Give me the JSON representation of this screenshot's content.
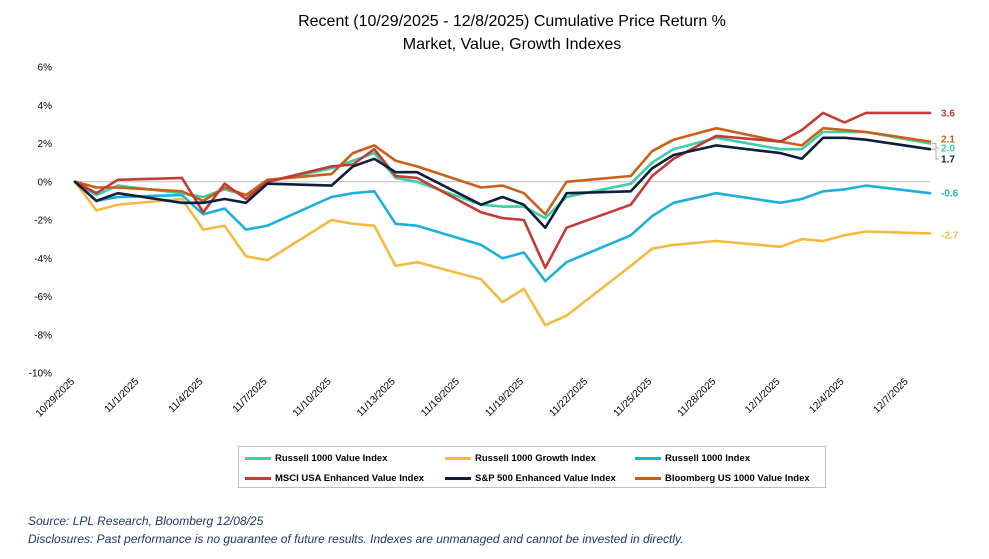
{
  "chart_data": {
    "type": "line",
    "title": "Recent (10/29/2025 - 12/8/2025) Cumulative Price Return %",
    "subtitle": "Market, Value, Growth Indexes",
    "ylim": [
      -10,
      6
    ],
    "yticks": [
      6,
      4,
      2,
      0,
      -2,
      -4,
      -6,
      -8,
      -10
    ],
    "ytick_labels": [
      "6%",
      "4%",
      "2%",
      "0%",
      "-2%",
      "-4%",
      "-6%",
      "-8%",
      "-10%"
    ],
    "x": [
      "10/29/2025",
      "10/30/2025",
      "10/31/2025",
      "11/3/2025",
      "11/4/2025",
      "11/5/2025",
      "11/6/2025",
      "11/7/2025",
      "11/10/2025",
      "11/11/2025",
      "11/12/2025",
      "11/13/2025",
      "11/14/2025",
      "11/17/2025",
      "11/18/2025",
      "11/19/2025",
      "11/20/2025",
      "11/21/2025",
      "11/24/2025",
      "11/25/2025",
      "11/26/2025",
      "11/28/2025",
      "12/1/2025",
      "12/2/2025",
      "12/3/2025",
      "12/4/2025",
      "12/5/2025",
      "12/8/2025"
    ],
    "xtick_labels": [
      "10/29/2025",
      "11/1/2025",
      "11/4/2025",
      "11/7/2025",
      "11/10/2025",
      "11/13/2025",
      "11/16/2025",
      "11/19/2025",
      "11/22/2025",
      "11/25/2025",
      "11/28/2025",
      "12/1/2025",
      "12/4/2025",
      "12/7/2025"
    ],
    "series": [
      {
        "name": "Russell 1000 Value Index",
        "color": "#3ccfa6",
        "end_label": "2.0",
        "values": [
          0.0,
          -0.7,
          -0.2,
          -0.6,
          -0.8,
          -0.4,
          -0.7,
          0.0,
          0.7,
          1.1,
          1.5,
          0.2,
          0.0,
          -1.2,
          -1.3,
          -1.3,
          -1.9,
          -0.8,
          -0.1,
          1.0,
          1.7,
          2.3,
          1.7,
          1.7,
          2.6,
          2.6,
          2.6,
          2.0
        ]
      },
      {
        "name": "Russell 1000 Growth Index",
        "color": "#f5b942",
        "end_label": "-2.7",
        "values": [
          0.0,
          -1.5,
          -1.2,
          -0.9,
          -2.5,
          -2.3,
          -3.9,
          -4.1,
          -2.0,
          -2.2,
          -2.3,
          -4.4,
          -4.2,
          -5.1,
          -6.3,
          -5.6,
          -7.5,
          -7.0,
          -4.4,
          -3.5,
          -3.3,
          -3.1,
          -3.4,
          -3.0,
          -3.1,
          -2.8,
          -2.6,
          -2.7
        ]
      },
      {
        "name": "Russell 1000 Index",
        "color": "#1cb0d8",
        "end_label": "-0.6",
        "values": [
          0.0,
          -1.0,
          -0.8,
          -0.7,
          -1.7,
          -1.4,
          -2.5,
          -2.3,
          -0.8,
          -0.6,
          -0.5,
          -2.2,
          -2.3,
          -3.3,
          -4.0,
          -3.7,
          -5.2,
          -4.2,
          -2.8,
          -1.8,
          -1.1,
          -0.6,
          -1.1,
          -0.9,
          -0.5,
          -0.4,
          -0.2,
          -0.6
        ]
      },
      {
        "name": "MSCI USA Enhanced Value Index",
        "color": "#c23b34",
        "end_label": "3.6",
        "values": [
          0.0,
          -0.6,
          0.1,
          0.2,
          -1.6,
          -0.1,
          -0.9,
          0.0,
          0.8,
          0.9,
          1.7,
          0.3,
          0.2,
          -1.6,
          -1.9,
          -2.0,
          -4.5,
          -2.4,
          -1.2,
          0.3,
          1.2,
          2.4,
          2.1,
          2.7,
          3.6,
          3.1,
          3.6,
          3.6
        ]
      },
      {
        "name": "S&P 500 Enhanced Value Index",
        "color": "#0e1f3d",
        "end_label": "1.7",
        "values": [
          0.0,
          -1.0,
          -0.6,
          -1.1,
          -1.1,
          -0.9,
          -1.1,
          -0.1,
          -0.2,
          0.8,
          1.2,
          0.5,
          0.5,
          -1.2,
          -0.8,
          -1.2,
          -2.4,
          -0.6,
          -0.5,
          0.7,
          1.4,
          1.9,
          1.5,
          1.2,
          2.3,
          2.3,
          2.2,
          1.7
        ]
      },
      {
        "name": "Bloomberg US 1000 Value Index",
        "color": "#c8601a",
        "end_label": "2.1",
        "values": [
          0.0,
          -0.3,
          -0.3,
          -0.5,
          -1.0,
          -0.3,
          -0.7,
          0.1,
          0.4,
          1.5,
          1.9,
          1.1,
          0.8,
          -0.3,
          -0.2,
          -0.6,
          -1.7,
          0.0,
          0.3,
          1.6,
          2.2,
          2.8,
          2.1,
          1.9,
          2.8,
          2.7,
          2.6,
          2.1
        ]
      }
    ]
  },
  "footer": {
    "source": "Source: LPL Research, Bloomberg 12/08/25",
    "disclosure": "Disclosures: Past performance is no guarantee of future results. Indexes are unmanaged and cannot be invested in directly."
  }
}
